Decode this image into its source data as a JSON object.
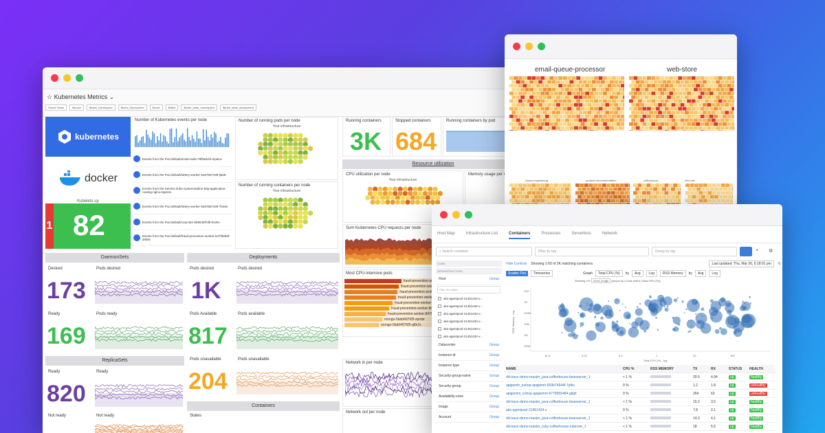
{
  "main": {
    "title": "Kubernetes Metrics",
    "filters": [
      "Saved Views",
      "$scope",
      "$kube_namespace",
      "$kube_deployment",
      "$node",
      "$label",
      "$kube_state_namespace",
      "$kube_state_deployment"
    ],
    "logos": {
      "kubernetes": "kubernetes",
      "docker": "docker"
    },
    "kubelets_label": "Kubelets up",
    "kubelets_value": "82",
    "kubelets_side": "1",
    "events_title": "Number of Kubernetes events per node",
    "events": [
      "Events from the Pod default/email-redis-79fb9dcfd-mpdcw",
      "Events from the Pod default/lottery-worker-5467657c89-jl6d8",
      "Events from the Service kube-system/addon-http-application-routing-nginx-ingress",
      "Events from the Pod default/lottery-worker-5467657c89-7b46n",
      "Events from the Pod default/corp-site-5b9646f7d9-hs2kn",
      "Events from the Pod default/fraud-prevention-worker-847fd8b8f-dnk8v"
    ],
    "pods_per_node_title": "Number of running pods per node",
    "containers_per_node_title": "Number of running containers per node",
    "hex_caption": "Your infrastructure",
    "running_containers_label": "Running containers",
    "running_containers_value": "3K",
    "stopped_containers_label": "Stopped containers",
    "stopped_containers_value": "684",
    "running_by_pod_label": "Running containers by pod",
    "resource_util": "Resource utilization",
    "cpu_util_title": "CPU utilization per node",
    "memory_title": "Memory usage per node",
    "cpu_requests_title": "Sum Kubernetes CPU requests per node",
    "most_cpu_title": "Most CPU-intensive pods",
    "cpu_pods": [
      "fraud-prevention-worker-847fd8b8f-dnk8v",
      "fraud-prevention-worker-847fd8b8f-w8mhd",
      "fraud-prevention-worker-847fd8b8f-w6wt7",
      "fraud-prevention-worker-847fd8b8f-xdr6m",
      "fraud-prevention-worker-847fd8b8f-ccjpw",
      "fraud-prevention-worker-847fd8b8f-jqxqf",
      "fraud-prevention-worker-847fd8b8f-8jcrd",
      "mongo-5bdd4976f5-zpmbr",
      "mongo-5bdd4976f5-q8n2s"
    ],
    "network_in_title": "Network in per node",
    "network_out_title": "Network out per node",
    "daemonsets": {
      "header": "DaemonSets",
      "desired_label": "Desired",
      "desired_value": "173",
      "desired_chart": "Pods desired",
      "ready_label": "Ready",
      "ready_value": "169",
      "ready_chart": "Pods ready"
    },
    "deployments": {
      "header": "Deployments",
      "desired_label": "Pods desired",
      "desired_value": "1K",
      "desired_chart": "Pods desired",
      "available_label": "Pods Available",
      "available_value": "817",
      "available_chart": "Pods available",
      "unavailable_label": "Pods unavailable",
      "unavailable_value": "204",
      "unavailable_chart": "Pods unavailable"
    },
    "replicasets": {
      "header": "ReplicaSets",
      "ready_label": "Ready",
      "ready_value": "820",
      "ready_chart": "Ready",
      "notready_label": "Not ready",
      "notready_chart": "Not ready"
    },
    "containers_header": "Containers",
    "states_label": "States"
  },
  "hostmap": {
    "groups": [
      "email-queue-processor",
      "web-store"
    ],
    "subgroups": [
      "chaos-engineering",
      "product-recommendation",
      "coffeehouse",
      "mini-site"
    ]
  },
  "containers": {
    "tabs": [
      "Host Map",
      "Infrastructure List",
      "Containers",
      "Processes",
      "Serverless",
      "Network"
    ],
    "active_tab": "Containers",
    "search_placeholder": "Search container",
    "filter_placeholder": "Filter by tag",
    "group_placeholder": "Group by tag",
    "core_label": "CORE",
    "infra_label": "INFRASTRUCTURE",
    "host_label": "Host",
    "group_link": "Group",
    "filter_values_placeholder": "Filter 30 values",
    "host_items": [
      "aks-agentpool-21451434-v...",
      "aks-agentpool-21451434-v...",
      "aks-agentpool-21451434-v...",
      "aks-agentpool-21451434-v...",
      "aks-agentpool-21451434-v...",
      "aks-agentpool-21451434-v..."
    ],
    "facets": [
      "Datacenter",
      "Instance-id",
      "Instance-type",
      "Security-group-name",
      "Security-group",
      "Availability-zone",
      "Image",
      "Account"
    ],
    "hide_controls": "Hide Controls",
    "showing": "Showing 1-50 of 2K matching containers",
    "last_updated": "Last updated: Thu, Mar 26, 5:18:01 pm",
    "view_tabs": [
      "Scatter Plot",
      "Timeseries"
    ],
    "graph_label": "Graph",
    "x_metric": "Total CPU (%)",
    "by_label": "by",
    "avg_label": "Avg",
    "log_label": "Log",
    "y_metric": "RSS Memory",
    "showing_note_a": "Showing 141",
    "showing_tag": "short_image",
    "showing_note_b": "groups by X-Axis metric (Total CPU (%))",
    "x_axis_title": "Total CPU (%) - log",
    "y_axis_title": "RSS Memory - log",
    "x_ticks": [
      "1e-5",
      "0.01",
      "0.1",
      "1",
      "10",
      "100"
    ],
    "y_ticks": [
      "10G",
      "1G",
      "100M",
      "10M",
      "1M",
      "100K"
    ],
    "columns": [
      "NAME",
      "CPU %",
      "RSS MEMORY",
      "TX",
      "RX",
      "STATUS",
      "HEALTH"
    ],
    "rows": [
      {
        "name": "dd-trace-demo-master_java-coffeehouse-beanserver_1",
        "cpu": "< 1 %",
        "tx": "20.5",
        "rx": "4.94",
        "status": "up",
        "health": "healthy"
      },
      {
        "name": "apigwmh_eshop-apigwmh-659b74944f-7pfks",
        "cpu": "0 %",
        "tx": "1.2",
        "rx": "1.8",
        "status": "up",
        "health": "unhealthy"
      },
      {
        "name": "apigwmm_eshop-apigwmm-6776555484-gbjdl",
        "cpu": "0 %",
        "tx": "264",
        "rx": "63",
        "status": "up",
        "health": "unhealthy"
      },
      {
        "name": "dd-trace-demo-master_java-coffeehouse-beanserver_1",
        "cpu": "< 1 %",
        "tx": "15.2",
        "rx": "3.5",
        "status": "up",
        "health": "healthy"
      },
      {
        "name": "aks-agentpool-21451434-v",
        "cpu": "0 %",
        "tx": "7.8",
        "rx": "2.1",
        "status": "up",
        "health": "healthy"
      },
      {
        "name": "dd-trace-demo-master_java-coffeehouse-beanserver_1",
        "cpu": "< 1 %",
        "tx": "14.3",
        "rx": "4.1",
        "status": "up",
        "health": "healthy"
      },
      {
        "name": "dd-trace-demo-master_ruby-coffeehouse-ruberver_1",
        "cpu": "< 1 %",
        "tx": "18",
        "rx": "5.5",
        "status": "up",
        "health": "healthy"
      }
    ]
  },
  "colors": {
    "purple": "#6b3fa0",
    "green": "#3cbf4f",
    "orange": "#f5a623",
    "kubernetes_blue": "#326ce5",
    "healthy": "#3cbf4f",
    "unhealthy": "#e53935"
  }
}
